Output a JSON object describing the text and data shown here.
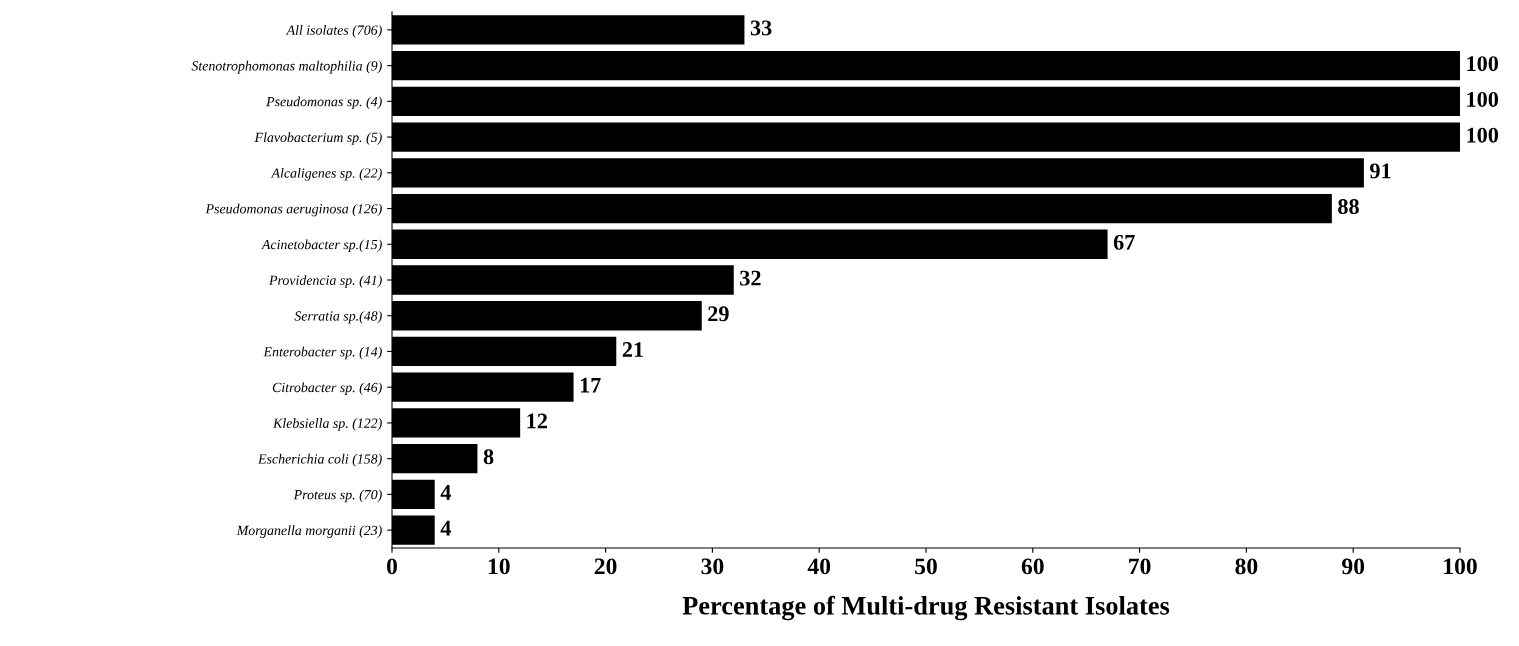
{
  "chart_data": {
    "type": "bar",
    "orientation": "horizontal",
    "xlabel": "Percentage of Multi-drug Resistant Isolates",
    "categories": [
      "All isolates (706)",
      "Stenotrophomonas maltophilia (9)",
      "Pseudomonas sp. (4)",
      "Flavobacterium sp. (5)",
      "Alcaligenes sp. (22)",
      "Pseudomonas aeruginosa (126)",
      "Acinetobacter sp.(15)",
      "Providencia sp. (41)",
      "Serratia sp.(48)",
      "Enterobacter sp. (14)",
      "Citrobacter sp. (46)",
      "Klebsiella sp. (122)",
      "Escherichia coli (158)",
      "Proteus sp. (70)",
      "Morganella morganii (23)"
    ],
    "values": [
      33,
      100,
      100,
      100,
      91,
      88,
      67,
      32,
      29,
      21,
      17,
      12,
      8,
      4,
      4
    ],
    "color": "#000000",
    "data_labels": true,
    "xlim": [
      0,
      100
    ],
    "xticks": [
      0,
      10,
      20,
      30,
      40,
      50,
      60,
      70,
      80,
      90,
      100
    ],
    "grid": false,
    "legend": false
  }
}
